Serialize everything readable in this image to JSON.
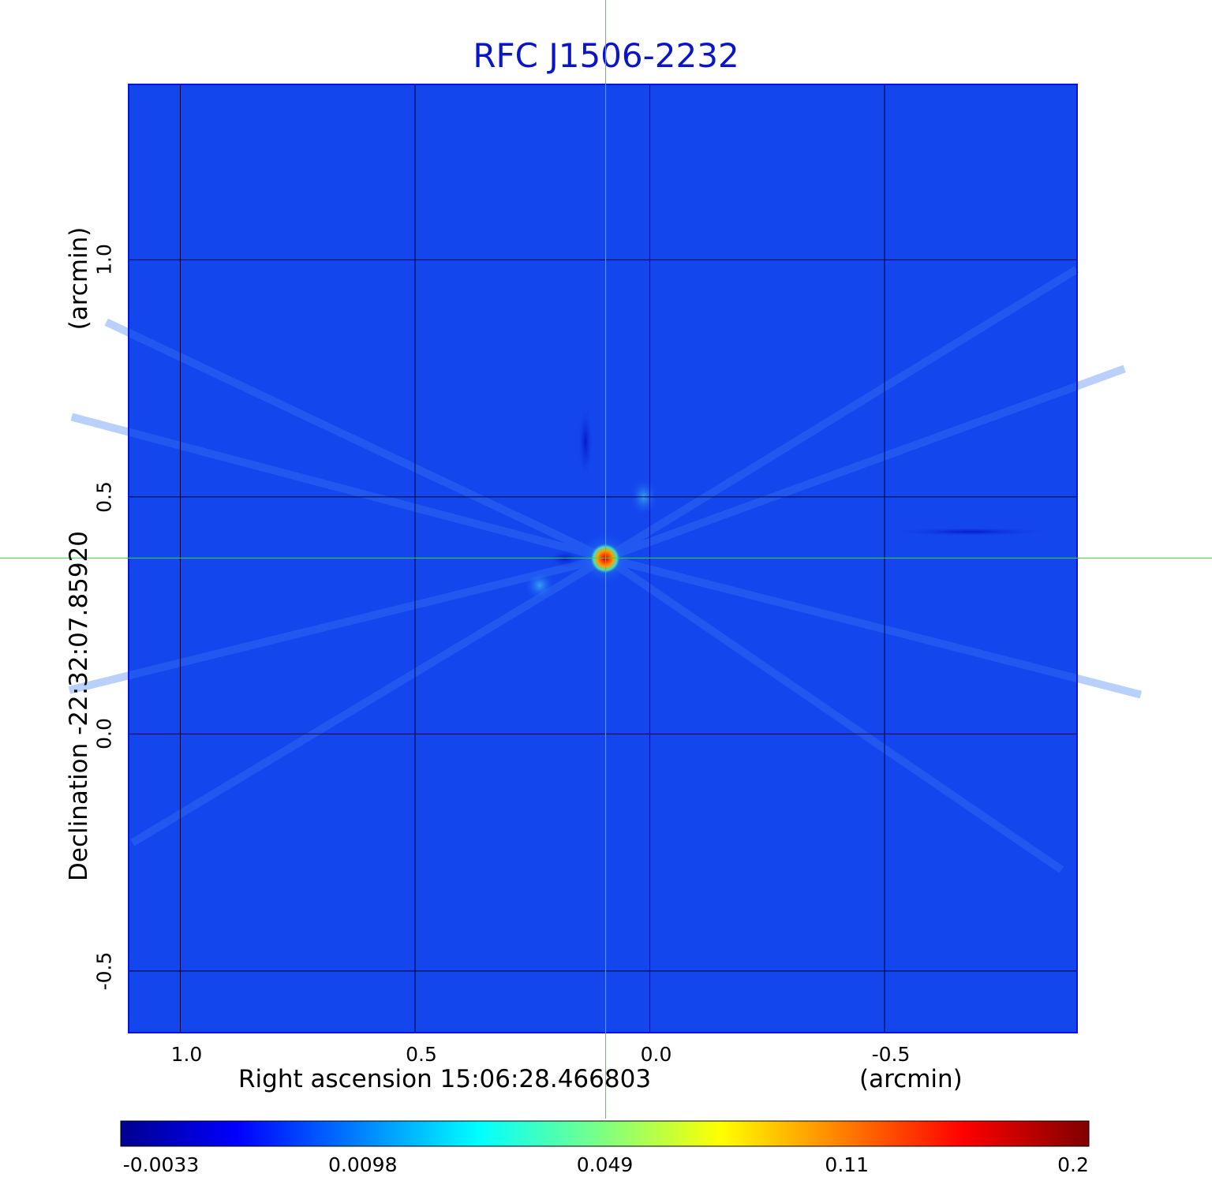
{
  "title": "RFC J1506-2232",
  "chart_data": {
    "type": "heatmap",
    "title": "RFC J1506-2232",
    "xlabel": "Right ascension  15:06:28.466803",
    "xunit": "(arcmin)",
    "ylabel": "Declination  -22:32:07.85920",
    "yunit": "(arcmin)",
    "x_ticks": [
      "1.0",
      "0.5",
      "0.0",
      "-0.5"
    ],
    "x_tick_values": [
      1.0,
      0.5,
      0.0,
      -0.5
    ],
    "y_ticks": [
      "1.0",
      "0.5",
      "0.0",
      "-0.5"
    ],
    "y_tick_values": [
      1.0,
      0.5,
      0.0,
      -0.5
    ],
    "xlim": [
      1.11,
      -0.91
    ],
    "ylim": [
      -0.63,
      1.37
    ],
    "grid": true,
    "crosshair": {
      "x": 0.094,
      "y": 0.371
    },
    "peak": {
      "x": 0.094,
      "y": 0.371,
      "value": 0.2
    },
    "colorbar": {
      "tick_labels": [
        "-0.0033",
        "0.0098",
        "0.049",
        "0.11",
        "0.2"
      ],
      "range": [
        -0.0033,
        0.2
      ],
      "colormap": "jet"
    },
    "background_color": "#1446ee",
    "crosshair_color": "#33dd33",
    "grid_color": "#000033",
    "border_color": "#0a14dc"
  }
}
